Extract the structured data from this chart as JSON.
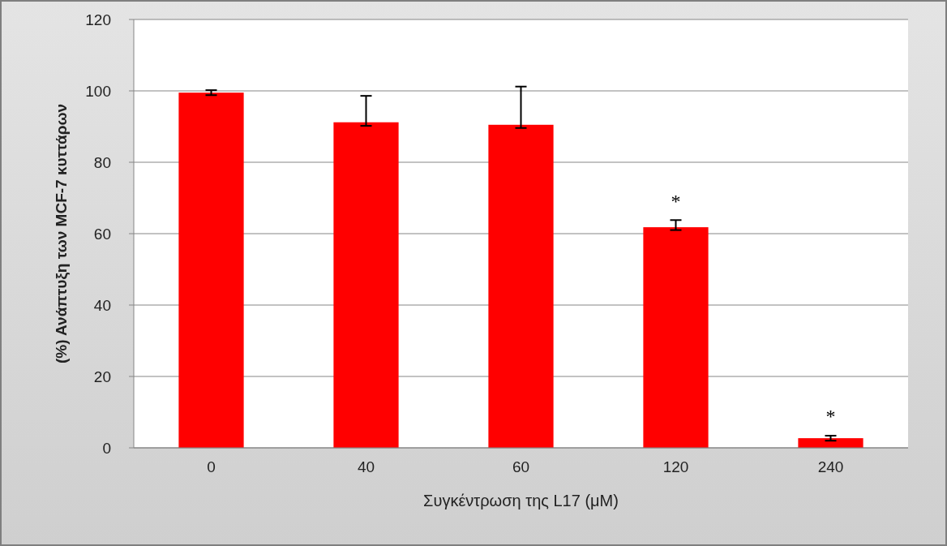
{
  "chart_data": {
    "type": "bar",
    "xlabel": "Συγκέντρωση της L17 (μM)",
    "ylabel": "(%) Ανάπτυξη των MCF-7 κυττάρων",
    "categories": [
      "0",
      "40",
      "60",
      "120",
      "240"
    ],
    "values": [
      99.5,
      91.2,
      90.5,
      61.8,
      2.7
    ],
    "errors": [
      0.7,
      [
        90.2,
        98.6
      ],
      [
        89.6,
        101.2
      ],
      [
        61,
        63.8
      ],
      0.7
    ],
    "color": "#ff0000",
    "ylim": [
      0,
      120
    ],
    "yticks": [
      0,
      20,
      40,
      60,
      80,
      100,
      120
    ],
    "grid": "y",
    "annotations": [
      "*",
      "*"
    ]
  }
}
